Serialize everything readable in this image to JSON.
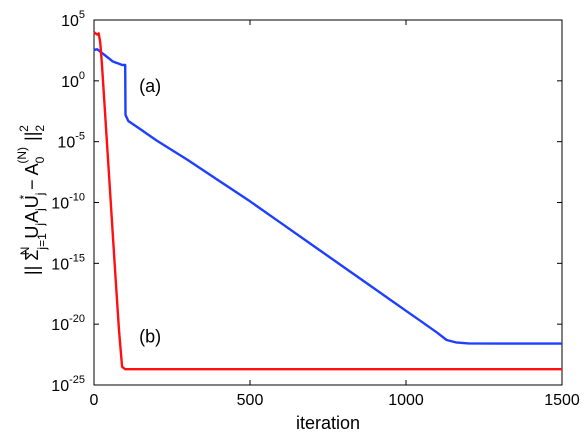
{
  "chart_data": {
    "type": "line",
    "xlabel": "iteration",
    "ylabel": "|| Σ_{j=1}^{N} U_j A_j U_j^* − A_0^{(N)} ||_2^2",
    "ylabel_parts": {
      "open": "|| Σ",
      "sum_sup": "N",
      "sum_sub": "j=1",
      "u": "U",
      "u_sub": "j",
      "a": "A",
      "a_sub": "j",
      "u2": "U",
      "u2_sub": "j",
      "u2_sup": "*",
      "minus": " − A",
      "a0_sub": "0",
      "a0_sup": "(N)",
      "close": "||",
      "norm_sub": "2",
      "norm_sup": "2"
    },
    "xlim": [
      0,
      1500
    ],
    "ylim_log10": [
      -25,
      5
    ],
    "yscale": "log",
    "grid": false,
    "x_ticks": [
      "0",
      "500",
      "1000",
      "1500"
    ],
    "y_ticks": [
      {
        "base": "10",
        "exp": "5"
      },
      {
        "base": "10",
        "exp": "0"
      },
      {
        "base": "10",
        "exp": "-5"
      },
      {
        "base": "10",
        "exp": "-10"
      },
      {
        "base": "10",
        "exp": "-15"
      },
      {
        "base": "10",
        "exp": "-20"
      },
      {
        "base": "10",
        "exp": "-25"
      }
    ],
    "series": [
      {
        "name": "(a)",
        "color": "#1f3fff",
        "x": [
          0,
          5,
          10,
          20,
          30,
          40,
          50,
          60,
          70,
          80,
          90,
          100,
          101,
          110,
          150,
          200,
          300,
          400,
          500,
          600,
          700,
          800,
          900,
          1000,
          1050,
          1100,
          1130,
          1160,
          1200,
          1300,
          1400,
          1500
        ],
        "log10_y": [
          2.6,
          2.55,
          2.6,
          2.4,
          2.2,
          2.0,
          1.8,
          1.6,
          1.5,
          1.4,
          1.3,
          1.3,
          -2.8,
          -3.3,
          -4.0,
          -4.9,
          -6.5,
          -8.2,
          -9.9,
          -11.7,
          -13.5,
          -15.3,
          -17.1,
          -18.9,
          -19.8,
          -20.7,
          -21.3,
          -21.5,
          -21.58,
          -21.6,
          -21.6,
          -21.6
        ]
      },
      {
        "name": "(b)",
        "color": "#ff1010",
        "x": [
          0,
          5,
          10,
          15,
          20,
          25,
          30,
          40,
          50,
          60,
          70,
          80,
          90,
          100,
          200,
          500,
          1000,
          1500
        ],
        "log10_y": [
          4.0,
          3.9,
          3.8,
          3.9,
          3.2,
          1.5,
          -0.5,
          -4.5,
          -8.5,
          -12.5,
          -16.5,
          -20.5,
          -23.5,
          -23.7,
          -23.7,
          -23.7,
          -23.7,
          -23.7
        ]
      }
    ],
    "annotations": [
      {
        "text": "(a)",
        "x": 180,
        "log10_y": -0.9
      },
      {
        "text": "(b)",
        "x": 180,
        "log10_y": -21.5
      }
    ]
  }
}
